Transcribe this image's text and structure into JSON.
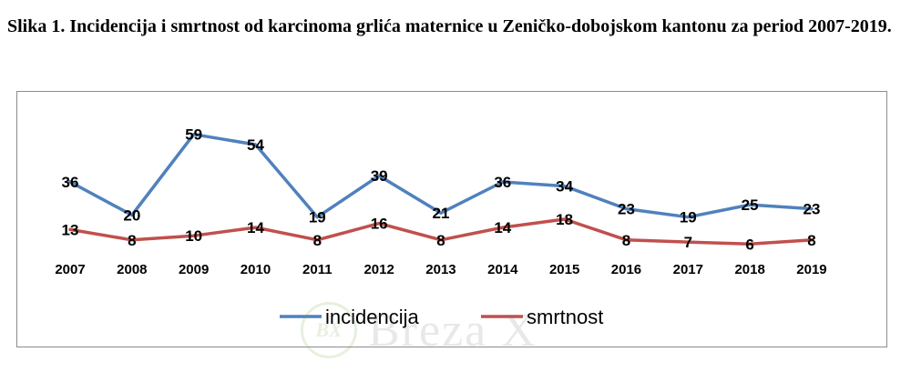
{
  "caption": "Slika 1. Incidencija i smrtnost od karcinoma grlića maternice  u Zeničko-dobojskom kantonu za period 2007-2019.",
  "watermark": {
    "logo_text": "BX",
    "text": "Breza X"
  },
  "chart_data": {
    "type": "line",
    "title": "",
    "xlabel": "",
    "ylabel": "",
    "categories": [
      "2007",
      "2008",
      "2009",
      "2010",
      "2011",
      "2012",
      "2013",
      "2014",
      "2015",
      "2016",
      "2017",
      "2018",
      "2019"
    ],
    "series": [
      {
        "name": "incidencija",
        "color": "#4f81bd",
        "values": [
          36,
          20,
          59,
          54,
          19,
          39,
          21,
          36,
          34,
          23,
          19,
          25,
          23
        ]
      },
      {
        "name": "smrtnost",
        "color": "#c0504d",
        "values": [
          13,
          8,
          10,
          14,
          8,
          16,
          8,
          14,
          18,
          8,
          7,
          6,
          8
        ]
      }
    ],
    "ylim": [
      0,
      65
    ],
    "grid": false,
    "data_labels": true,
    "legend_position": "bottom"
  }
}
